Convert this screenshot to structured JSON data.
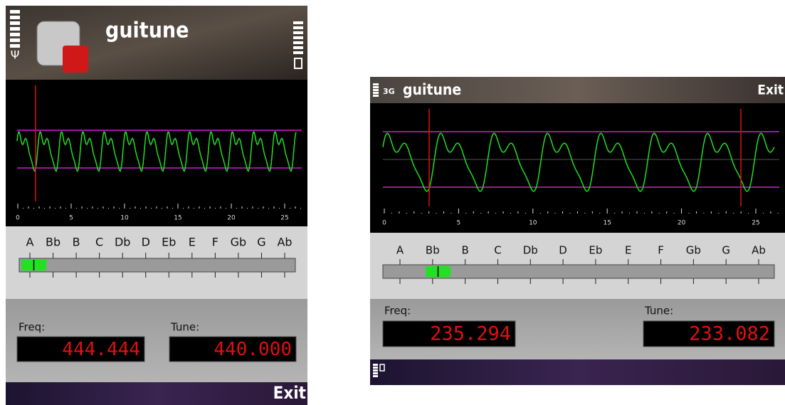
{
  "screens": [
    {
      "title": "guitune",
      "scale_labels": [
        "0",
        "5",
        "10",
        "15",
        "20",
        "25"
      ],
      "notes": [
        "A",
        "Bb",
        "B",
        "C",
        "Db",
        "D",
        "Eb",
        "E",
        "F",
        "Gb",
        "G",
        "Ab"
      ],
      "freq": {
        "label": "Freq:",
        "value": "444.444"
      },
      "tune": {
        "label": "Tune:",
        "value": "440.000"
      },
      "softkey": "Exit"
    },
    {
      "network": "3G",
      "title": "guitune",
      "scale_labels": [
        "0",
        "5",
        "10",
        "15",
        "20",
        "25"
      ],
      "notes": [
        "A",
        "Bb",
        "B",
        "C",
        "Db",
        "D",
        "Eb",
        "E",
        "F",
        "Gb",
        "G",
        "Ab"
      ],
      "freq": {
        "label": "Freq:",
        "value": "235.294"
      },
      "tune": {
        "label": "Tune:",
        "value": "233.082"
      },
      "softkey": "Exit"
    }
  ]
}
